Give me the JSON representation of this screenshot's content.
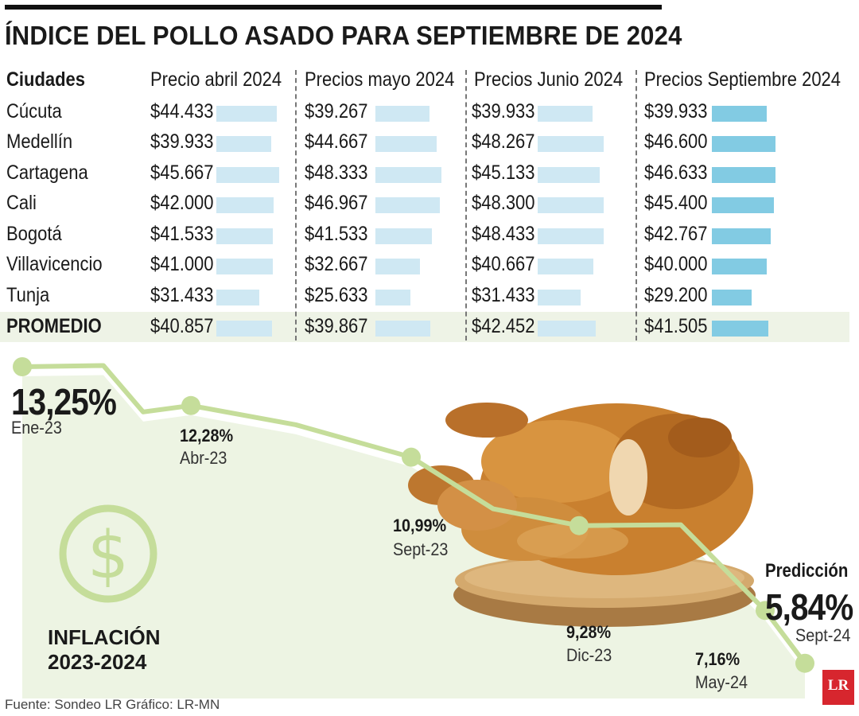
{
  "title": "ÍNDICE DEL POLLO ASADO PARA SEPTIEMBRE DE 2024",
  "table": {
    "headers": [
      "Ciudades",
      "Precio abril 2024",
      "Precios mayo 2024",
      "Precios Junio 2024",
      "Precios Septiembre 2024"
    ],
    "rows": [
      {
        "city": "Cúcuta",
        "values": [
          "$44.433",
          "$39.267",
          "$39.933",
          "$39.933"
        ]
      },
      {
        "city": "Medellín",
        "values": [
          "$39.933",
          "$44.667",
          "$48.267",
          "$46.600"
        ]
      },
      {
        "city": "Cartagena",
        "values": [
          "$45.667",
          "$48.333",
          "$45.133",
          "$46.633"
        ]
      },
      {
        "city": "Cali",
        "values": [
          "$42.000",
          "$46.967",
          "$48.300",
          "$45.400"
        ]
      },
      {
        "city": "Bogotá",
        "values": [
          "$41.533",
          "$41.533",
          "$48.433",
          "$42.767"
        ]
      },
      {
        "city": "Villavicencio",
        "values": [
          "$41.000",
          "$32.667",
          "$40.667",
          "$40.000"
        ]
      },
      {
        "city": "Tunja",
        "values": [
          "$31.433",
          "$25.633",
          "$31.433",
          "$29.200"
        ]
      },
      {
        "city": "PROMEDIO",
        "values": [
          "$40.857",
          "$39.867",
          "$42.452",
          "$41.505"
        ]
      }
    ],
    "colors": {
      "bar": "#cfe8f3",
      "bar_september": "#82cbe3",
      "promedio_band": "#eef3e6"
    }
  },
  "chart_data": [
    {
      "type": "bar",
      "categories": [
        "Cúcuta",
        "Medellín",
        "Cartagena",
        "Cali",
        "Bogotá",
        "Villavicencio",
        "Tunja",
        "PROMEDIO"
      ],
      "series": [
        {
          "name": "Precio abril 2024",
          "values": [
            44433,
            39933,
            45667,
            42000,
            41533,
            41000,
            31433,
            40857
          ]
        },
        {
          "name": "Precios mayo 2024",
          "values": [
            39267,
            44667,
            48333,
            46967,
            41533,
            32667,
            25633,
            39867
          ]
        },
        {
          "name": "Precios Junio 2024",
          "values": [
            39933,
            48267,
            45133,
            48300,
            48433,
            40667,
            31433,
            42452
          ]
        },
        {
          "name": "Precios Septiembre 2024",
          "values": [
            39933,
            46600,
            46633,
            45400,
            42767,
            40000,
            29200,
            41505
          ]
        }
      ],
      "title": "ÍNDICE DEL POLLO ASADO PARA SEPTIEMBRE DE 2024",
      "xlabel": "",
      "ylabel": "",
      "ylim": [
        0,
        50000
      ]
    },
    {
      "type": "line",
      "title": "INFLACIÓN 2023-2024",
      "labeled_points": [
        {
          "date": "Ene-23",
          "value": 13.25,
          "label": "13,25%"
        },
        {
          "date": "Abr-23",
          "value": 12.28,
          "label": "12,28%"
        },
        {
          "date": "Sept-23",
          "value": 10.99,
          "label": "10,99%"
        },
        {
          "date": "Dic-23",
          "value": 9.28,
          "label": "9,28%"
        },
        {
          "date": "May-24",
          "value": 7.16,
          "label": "7,16%"
        },
        {
          "date": "Sept-24",
          "value": 5.84,
          "label": "5,84%",
          "prediction": true
        }
      ],
      "series": [
        {
          "values": [
            13.25,
            13.28,
            12.12,
            12.28,
            11.8,
            10.99,
            9.7,
            9.28,
            9.3,
            7.16,
            5.84
          ]
        }
      ],
      "prediction_label": "Predicción",
      "colors": {
        "line": "#c5dd9a",
        "fill": "#edf4e3",
        "marker": "#c5dd9a"
      }
    }
  ],
  "inflation": {
    "line1": "INFLACIÓN",
    "line2": "2023-2024",
    "icon": "dollar-icon"
  },
  "footer": {
    "source": "Fuente: Sondeo LR   Gráfico: LR-MN",
    "logo": "LR"
  }
}
